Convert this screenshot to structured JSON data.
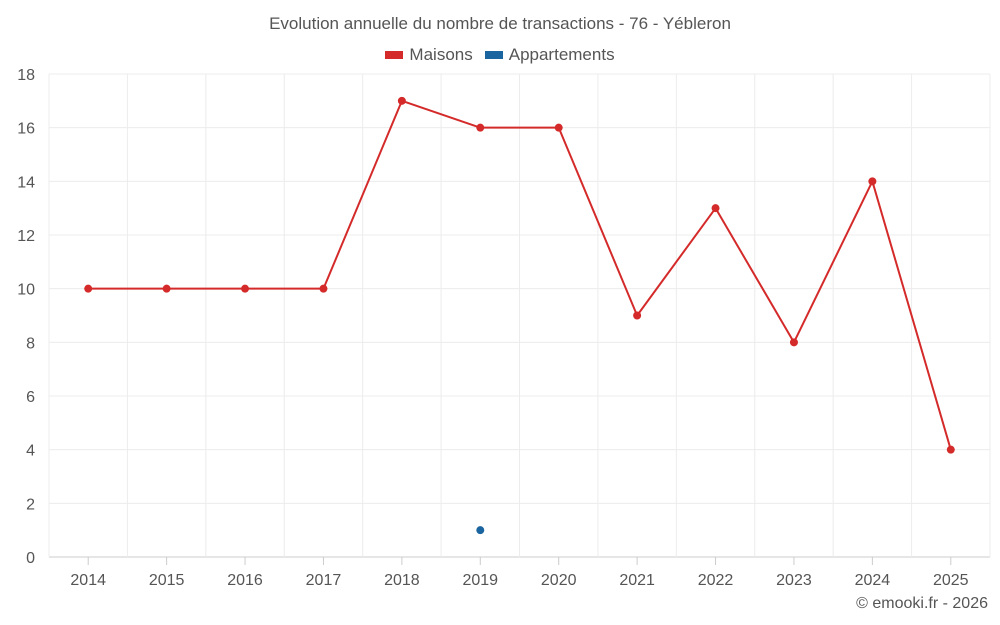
{
  "chart_data": {
    "type": "line",
    "title": "Evolution annuelle du nombre de transactions - 76 - Yébleron",
    "categories": [
      "2014",
      "2015",
      "2016",
      "2017",
      "2018",
      "2019",
      "2020",
      "2021",
      "2022",
      "2023",
      "2024",
      "2025"
    ],
    "series": [
      {
        "name": "Maisons",
        "color": "#d42a2a",
        "values": [
          10,
          10,
          10,
          10,
          17,
          16,
          16,
          9,
          13,
          8,
          14,
          4
        ]
      },
      {
        "name": "Appartements",
        "color": "#1a65a0",
        "values": [
          null,
          null,
          null,
          null,
          null,
          1,
          null,
          null,
          null,
          null,
          null,
          null
        ]
      }
    ],
    "y_ticks": [
      "0",
      "2",
      "4",
      "6",
      "8",
      "10",
      "12",
      "14",
      "16",
      "18"
    ],
    "ylim": [
      0,
      18
    ],
    "xlabel": "",
    "ylabel": "",
    "grid": true,
    "legend_position": "top-center"
  },
  "credit": "© emooki.fr - 2026"
}
